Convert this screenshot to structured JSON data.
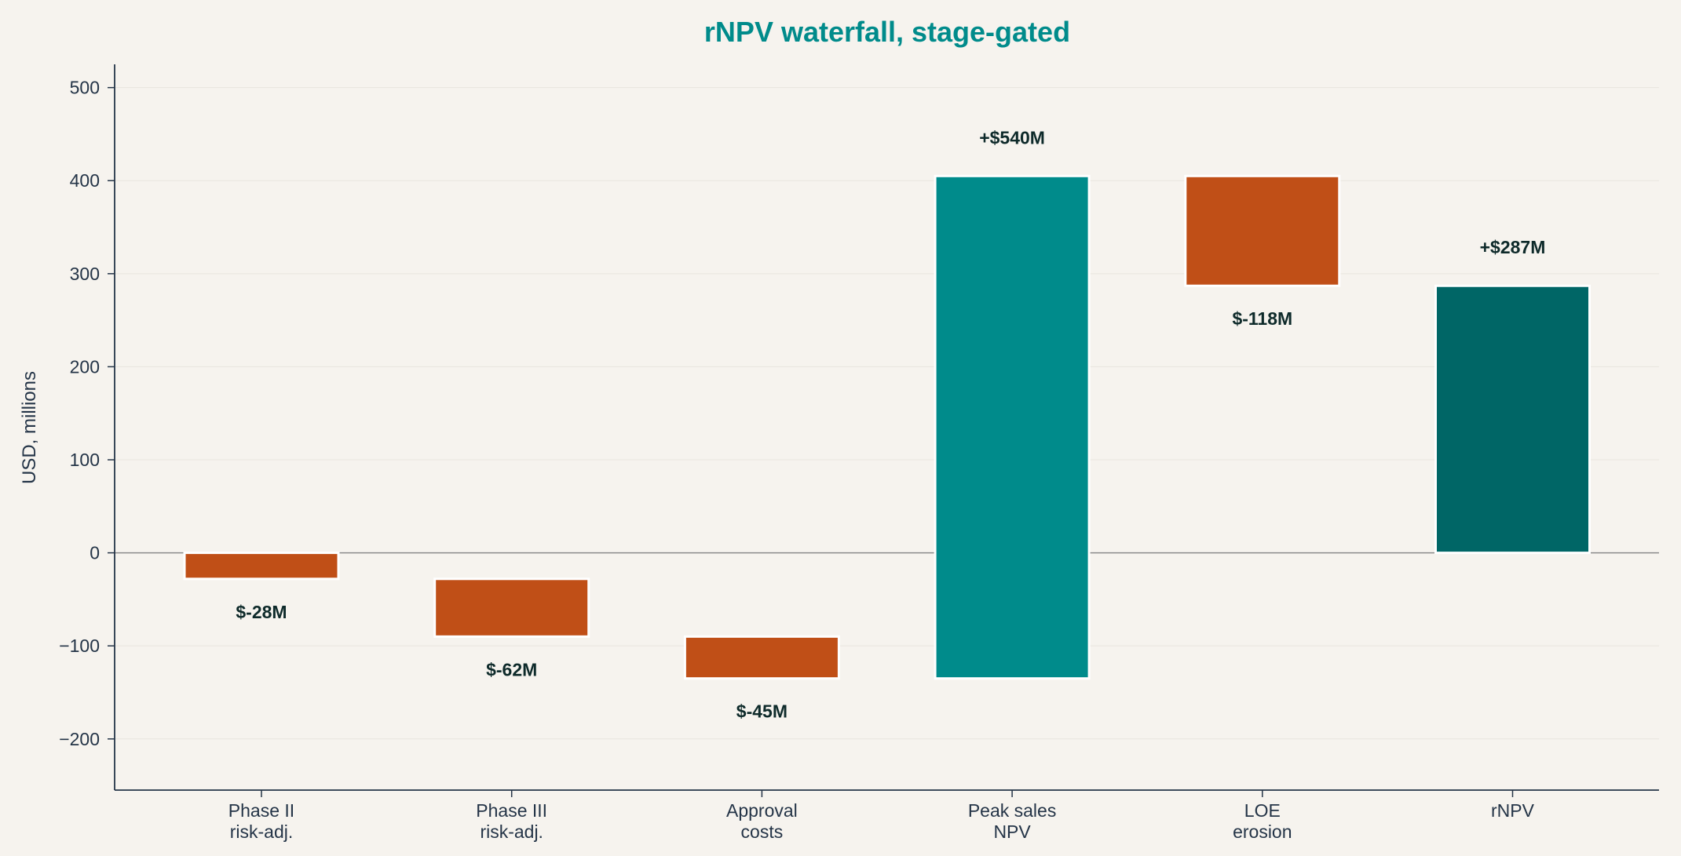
{
  "chart_data": {
    "type": "bar",
    "title": "rNPV waterfall, stage-gated",
    "ylabel": "USD, millions",
    "xlabel": "",
    "ylim": [
      -255,
      525
    ],
    "yticks": [
      500,
      400,
      300,
      200,
      100,
      0,
      -100,
      -200
    ],
    "ytick_labels": [
      "500",
      "400",
      "300",
      "200",
      "100",
      "0",
      "−100",
      "−200"
    ],
    "grid": true,
    "categories": [
      [
        "Phase II",
        "risk-adj."
      ],
      [
        "Phase III",
        "risk-adj."
      ],
      [
        "Approval",
        "costs"
      ],
      [
        "Peak sales",
        "NPV"
      ],
      [
        "LOE",
        "erosion"
      ],
      [
        "rNPV"
      ]
    ],
    "bars": [
      {
        "start": 0,
        "end": -28,
        "label": "$-28M",
        "kind": "decrease"
      },
      {
        "start": -28,
        "end": -90,
        "label": "$-62M",
        "kind": "decrease"
      },
      {
        "start": -90,
        "end": -135,
        "label": "$-45M",
        "kind": "decrease"
      },
      {
        "start": -135,
        "end": 405,
        "label": "+$540M",
        "kind": "increase"
      },
      {
        "start": 405,
        "end": 287,
        "label": "$-118M",
        "kind": "decrease"
      },
      {
        "start": 0,
        "end": 287,
        "label": "+$287M",
        "kind": "total"
      }
    ],
    "colors": {
      "decrease": "#c04f17",
      "increase": "#008b8b",
      "total": "#006666",
      "title": "#008b8b",
      "axis": "#243447",
      "zero_line": "#8a8a8a",
      "grid": "#e9e5de"
    }
  }
}
